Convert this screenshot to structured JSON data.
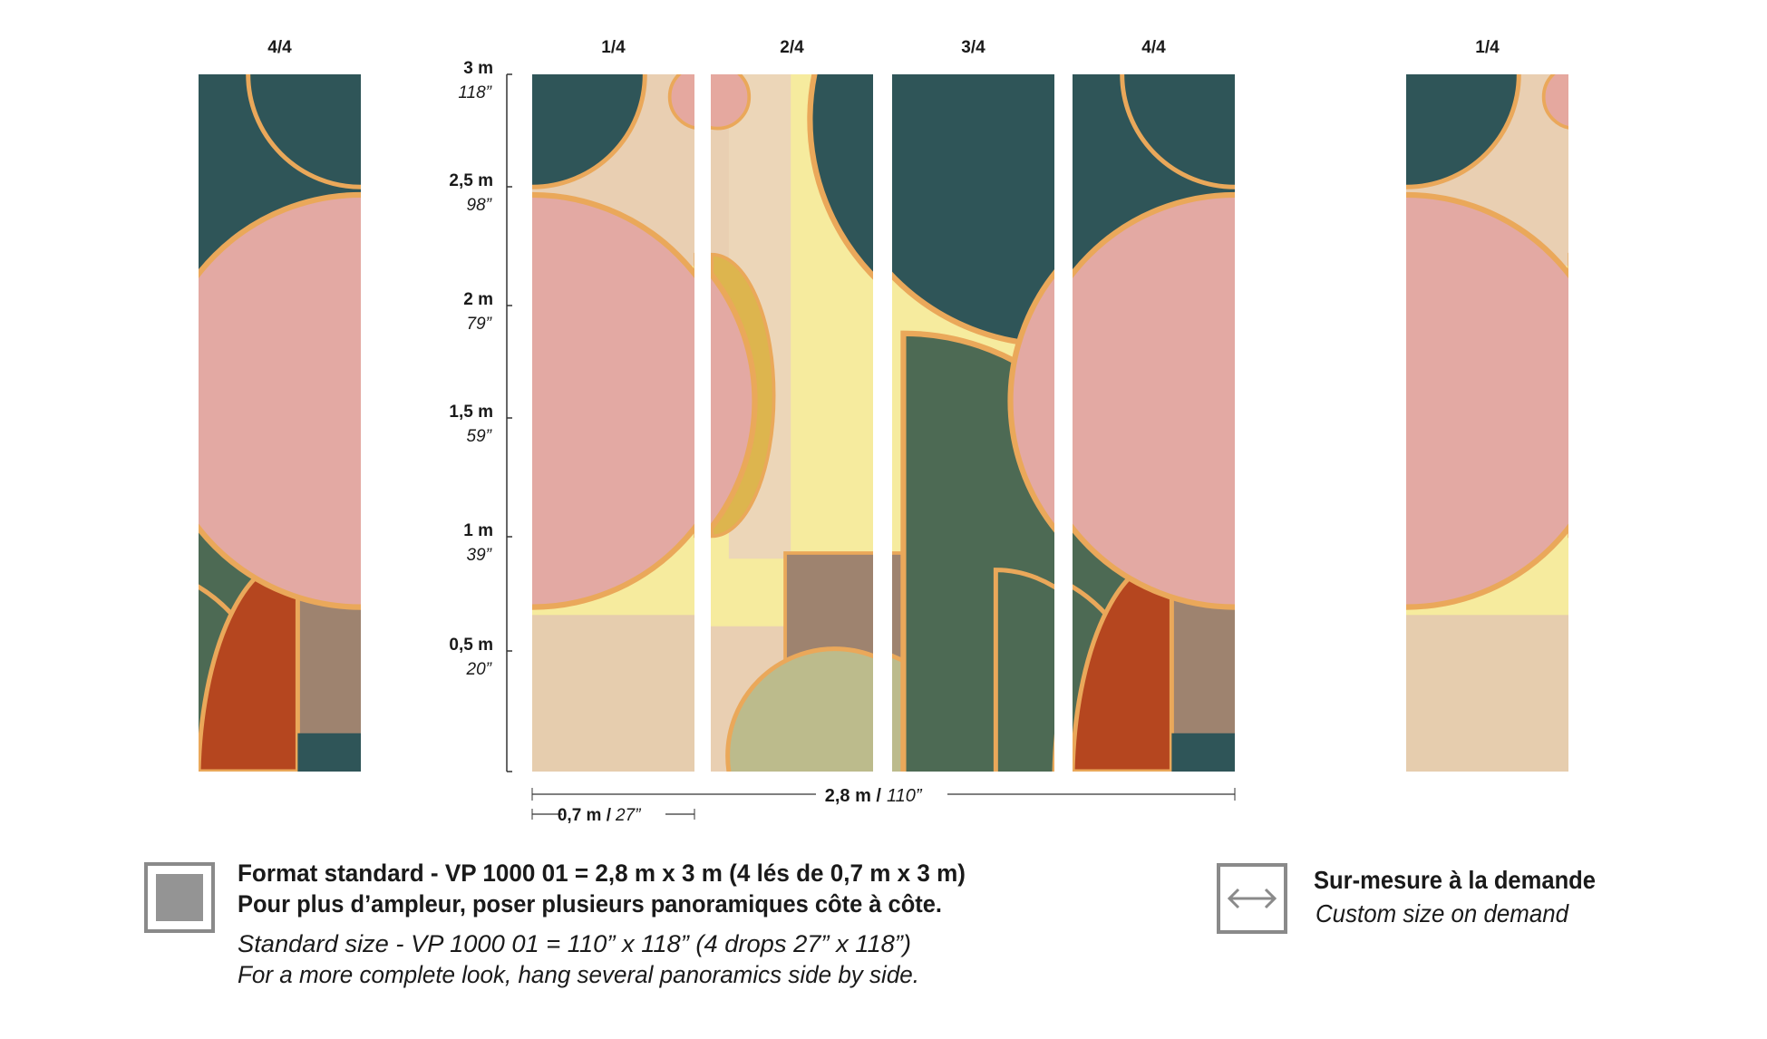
{
  "panels": [
    "4/4",
    "1/4",
    "2/4",
    "3/4",
    "4/4",
    "1/4"
  ],
  "height_scale": [
    {
      "metric": "3 m",
      "imperial": "118”"
    },
    {
      "metric": "2,5 m",
      "imperial": "98”"
    },
    {
      "metric": "2 m",
      "imperial": "79”"
    },
    {
      "metric": "1,5 m",
      "imperial": "59”"
    },
    {
      "metric": "1 m",
      "imperial": "39”"
    },
    {
      "metric": "0,5 m",
      "imperial": "20”"
    }
  ],
  "width_total": {
    "metric": "2,8 m /",
    "imperial": "110”"
  },
  "width_drop": {
    "metric": "0,7 m /",
    "imperial": "27”"
  },
  "standard": {
    "line1": "Format standard - VP 1000 01 = 2,8 m x 3 m (4 lés de 0,7 m x 3 m)",
    "line2": "Pour plus d’ampleur, poser plusieurs panoramiques côte à côte.",
    "line3": "Standard size - VP 1000 01 = 110” x 118” (4 drops 27” x 118”)",
    "line4": "For a more complete look, hang several panoramics side by side."
  },
  "custom": {
    "title": "Sur-mesure à la demande",
    "subtitle": "Custom size on demand"
  }
}
